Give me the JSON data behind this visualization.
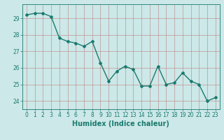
{
  "x": [
    0,
    1,
    2,
    3,
    4,
    5,
    6,
    7,
    8,
    9,
    10,
    11,
    12,
    13,
    14,
    15,
    16,
    17,
    18,
    19,
    20,
    21,
    22,
    23
  ],
  "y": [
    29.2,
    29.3,
    29.3,
    29.1,
    27.8,
    27.6,
    27.5,
    27.3,
    27.6,
    26.3,
    25.2,
    25.8,
    26.1,
    25.9,
    24.9,
    24.9,
    26.1,
    25.0,
    25.1,
    25.7,
    25.2,
    25.0,
    24.0,
    24.2
  ],
  "line_color": "#1a7a6e",
  "marker": "D",
  "marker_size": 2.0,
  "bg_color": "#cce8e8",
  "grid_color": "#c08080",
  "xlabel": "Humidex (Indice chaleur)",
  "xlim": [
    -0.5,
    23.5
  ],
  "ylim": [
    23.5,
    29.85
  ],
  "yticks": [
    24,
    25,
    26,
    27,
    28,
    29
  ],
  "xticks": [
    0,
    1,
    2,
    3,
    4,
    5,
    6,
    7,
    8,
    9,
    10,
    11,
    12,
    13,
    14,
    15,
    16,
    17,
    18,
    19,
    20,
    21,
    22,
    23
  ],
  "label_color": "#1a7a6e",
  "tick_color": "#1a7a6e",
  "line_width": 1.0,
  "xlabel_fontsize": 7,
  "tick_fontsize": 5.5
}
